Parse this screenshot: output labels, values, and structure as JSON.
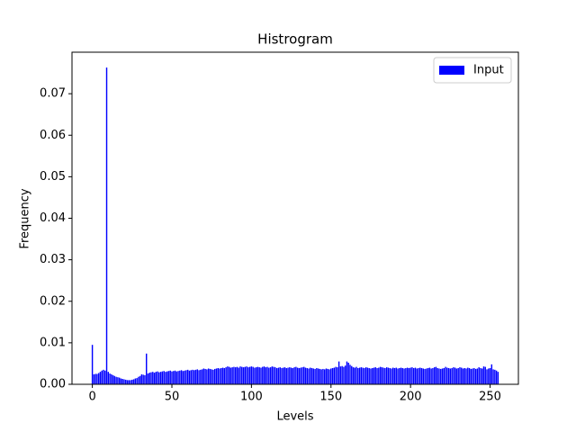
{
  "chart_data": {
    "type": "bar",
    "title": "Histrogram",
    "xlabel": "Levels",
    "ylabel": "Frequency",
    "x": [
      0,
      1,
      2,
      3,
      4,
      5,
      6,
      7,
      8,
      9,
      10,
      11,
      12,
      13,
      14,
      15,
      16,
      17,
      18,
      19,
      20,
      21,
      22,
      23,
      24,
      25,
      26,
      27,
      28,
      29,
      30,
      31,
      32,
      33,
      34,
      35,
      36,
      37,
      38,
      39,
      40,
      41,
      42,
      43,
      44,
      45,
      46,
      47,
      48,
      49,
      50,
      51,
      52,
      53,
      54,
      55,
      56,
      57,
      58,
      59,
      60,
      61,
      62,
      63,
      64,
      65,
      66,
      67,
      68,
      69,
      70,
      71,
      72,
      73,
      74,
      75,
      76,
      77,
      78,
      79,
      80,
      81,
      82,
      83,
      84,
      85,
      86,
      87,
      88,
      89,
      90,
      91,
      92,
      93,
      94,
      95,
      96,
      97,
      98,
      99,
      100,
      101,
      102,
      103,
      104,
      105,
      106,
      107,
      108,
      109,
      110,
      111,
      112,
      113,
      114,
      115,
      116,
      117,
      118,
      119,
      120,
      121,
      122,
      123,
      124,
      125,
      126,
      127,
      128,
      129,
      130,
      131,
      132,
      133,
      134,
      135,
      136,
      137,
      138,
      139,
      140,
      141,
      142,
      143,
      144,
      145,
      146,
      147,
      148,
      149,
      150,
      151,
      152,
      153,
      154,
      155,
      156,
      157,
      158,
      159,
      160,
      161,
      162,
      163,
      164,
      165,
      166,
      167,
      168,
      169,
      170,
      171,
      172,
      173,
      174,
      175,
      176,
      177,
      178,
      179,
      180,
      181,
      182,
      183,
      184,
      185,
      186,
      187,
      188,
      189,
      190,
      191,
      192,
      193,
      194,
      195,
      196,
      197,
      198,
      199,
      200,
      201,
      202,
      203,
      204,
      205,
      206,
      207,
      208,
      209,
      210,
      211,
      212,
      213,
      214,
      215,
      216,
      217,
      218,
      219,
      220,
      221,
      222,
      223,
      224,
      225,
      226,
      227,
      228,
      229,
      230,
      231,
      232,
      233,
      234,
      235,
      236,
      237,
      238,
      239,
      240,
      241,
      242,
      243,
      244,
      245,
      246,
      247,
      248,
      249,
      250,
      251,
      252,
      253,
      254,
      255
    ],
    "series": [
      {
        "name": "Input",
        "color": "#0000ff",
        "values": [
          0.0095,
          0.0024,
          0.0025,
          0.0025,
          0.0027,
          0.003,
          0.0033,
          0.0035,
          0.0033,
          0.0763,
          0.003,
          0.0026,
          0.0024,
          0.0022,
          0.002,
          0.0018,
          0.0017,
          0.0016,
          0.0014,
          0.0013,
          0.0012,
          0.0011,
          0.001,
          0.001,
          0.001,
          0.0011,
          0.0012,
          0.0014,
          0.0015,
          0.0018,
          0.002,
          0.0024,
          0.0023,
          0.0022,
          0.0074,
          0.0026,
          0.0028,
          0.0029,
          0.003,
          0.0028,
          0.003,
          0.0031,
          0.0029,
          0.003,
          0.0031,
          0.0032,
          0.003,
          0.0031,
          0.0032,
          0.0033,
          0.0031,
          0.0032,
          0.0033,
          0.0031,
          0.0032,
          0.0033,
          0.0034,
          0.0032,
          0.0033,
          0.0034,
          0.0035,
          0.0033,
          0.0034,
          0.0035,
          0.0034,
          0.0035,
          0.0036,
          0.0034,
          0.0035,
          0.0036,
          0.0038,
          0.0037,
          0.0036,
          0.0038,
          0.0037,
          0.0036,
          0.0035,
          0.0037,
          0.0038,
          0.0039,
          0.0038,
          0.0039,
          0.004,
          0.0039,
          0.0041,
          0.0043,
          0.0042,
          0.004,
          0.0041,
          0.0042,
          0.0041,
          0.0042,
          0.004,
          0.0043,
          0.0042,
          0.0041,
          0.0042,
          0.0043,
          0.0041,
          0.0042,
          0.0043,
          0.0042,
          0.004,
          0.0041,
          0.0042,
          0.0041,
          0.004,
          0.0042,
          0.0043,
          0.0041,
          0.0042,
          0.004,
          0.0041,
          0.0043,
          0.0042,
          0.0041,
          0.0039,
          0.004,
          0.0041,
          0.0039,
          0.004,
          0.0041,
          0.0039,
          0.004,
          0.0041,
          0.004,
          0.0039,
          0.0041,
          0.0042,
          0.004,
          0.0039,
          0.004,
          0.0041,
          0.0042,
          0.004,
          0.0039,
          0.0038,
          0.004,
          0.0039,
          0.0038,
          0.0037,
          0.0039,
          0.0038,
          0.0037,
          0.0036,
          0.0037,
          0.0036,
          0.0038,
          0.0037,
          0.0036,
          0.0038,
          0.0039,
          0.004,
          0.0042,
          0.0041,
          0.0055,
          0.0043,
          0.0044,
          0.0042,
          0.0045,
          0.0055,
          0.0052,
          0.0047,
          0.0044,
          0.0041,
          0.004,
          0.0042,
          0.0039,
          0.004,
          0.0041,
          0.004,
          0.0039,
          0.0041,
          0.004,
          0.0039,
          0.0038,
          0.0039,
          0.004,
          0.0041,
          0.0039,
          0.004,
          0.0042,
          0.0041,
          0.004,
          0.0039,
          0.0041,
          0.004,
          0.0039,
          0.0038,
          0.004,
          0.0039,
          0.004,
          0.0038,
          0.0039,
          0.004,
          0.0039,
          0.0038,
          0.0039,
          0.004,
          0.0039,
          0.004,
          0.0041,
          0.0039,
          0.004,
          0.0038,
          0.0039,
          0.004,
          0.0039,
          0.0038,
          0.0037,
          0.0038,
          0.0039,
          0.004,
          0.0038,
          0.0039,
          0.0041,
          0.0042,
          0.0039,
          0.0038,
          0.0037,
          0.0038,
          0.0039,
          0.0042,
          0.004,
          0.0039,
          0.0038,
          0.0039,
          0.0041,
          0.004,
          0.0038,
          0.0039,
          0.0041,
          0.004,
          0.0038,
          0.0039,
          0.0038,
          0.004,
          0.0039,
          0.0037,
          0.0038,
          0.0039,
          0.0037,
          0.0038,
          0.0041,
          0.0039,
          0.0038,
          0.0043,
          0.0042,
          0.0036,
          0.0038,
          0.0039,
          0.0048,
          0.0036,
          0.0035,
          0.0033,
          0.003
        ]
      }
    ],
    "xlim": [
      -12.79,
      267.79
    ],
    "xticks": [
      0,
      50,
      100,
      150,
      200,
      250
    ],
    "ylim": [
      0,
      0.08
    ],
    "yticks": [
      {
        "value": 0,
        "label": "0.00"
      },
      {
        "value": 0.01,
        "label": "0.01"
      },
      {
        "value": 0.02,
        "label": "0.02"
      },
      {
        "value": 0.03,
        "label": "0.03"
      },
      {
        "value": 0.04,
        "label": "0.04"
      },
      {
        "value": 0.05,
        "label": "0.05"
      },
      {
        "value": 0.06,
        "label": "0.06"
      },
      {
        "value": 0.07,
        "label": "0.07"
      }
    ],
    "bar_width": 0.8,
    "legend": "upper right",
    "grid": false
  }
}
